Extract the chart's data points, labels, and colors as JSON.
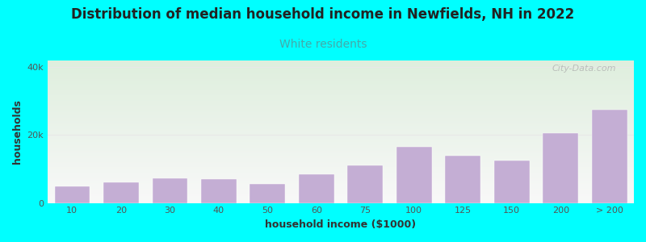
{
  "title": "Distribution of median household income in Newfields, NH in 2022",
  "subtitle": "White residents",
  "xlabel": "household income ($1000)",
  "ylabel": "households",
  "background_color": "#00FFFF",
  "plot_bg_gradient_top": "#deeedd",
  "plot_bg_gradient_bottom": "#f8f8f8",
  "bar_color": "#c4aed4",
  "bar_edge_color": "#ffffff",
  "categories": [
    "10",
    "20",
    "30",
    "40",
    "50",
    "60",
    "75",
    "100",
    "125",
    "150",
    "200",
    "> 200"
  ],
  "values": [
    4800,
    6200,
    7200,
    7000,
    5500,
    8500,
    11000,
    16500,
    14000,
    12500,
    20500,
    27500
  ],
  "ylim": [
    0,
    42000
  ],
  "yticks": [
    0,
    20000,
    40000
  ],
  "ytick_labels": [
    "0",
    "20k",
    "40k"
  ],
  "title_fontsize": 12,
  "subtitle_fontsize": 10,
  "subtitle_color": "#44aaaa",
  "axis_label_fontsize": 9,
  "tick_fontsize": 8,
  "watermark_text": "City-Data.com",
  "watermark_color": "#aaaaaa",
  "grid_color": "#e8e8e8",
  "title_color": "#222222"
}
